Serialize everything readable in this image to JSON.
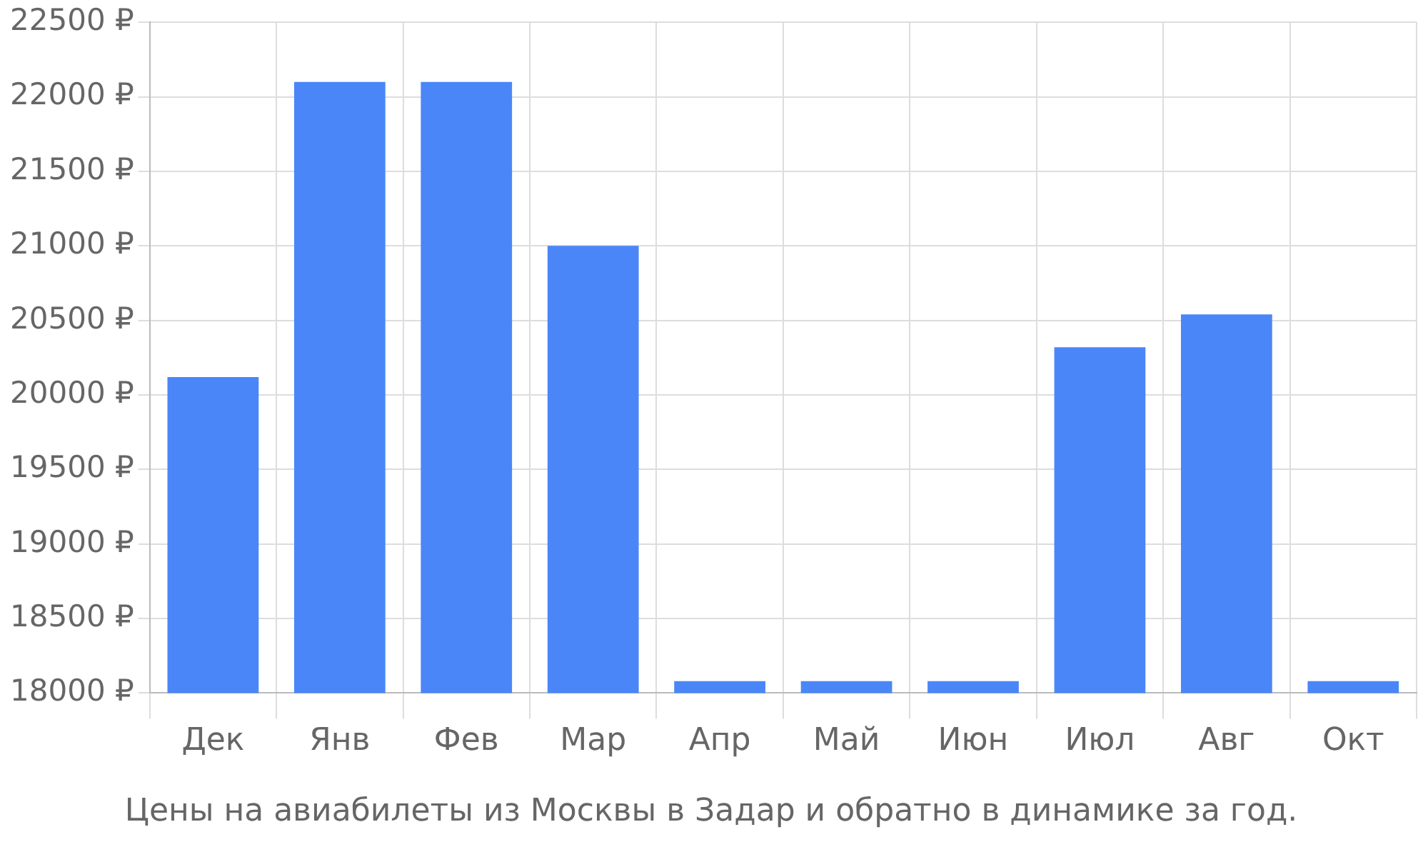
{
  "chart_data": {
    "type": "bar",
    "title": "Цены на авиабилеты из Москвы в Задар и обратно в динамике за год.",
    "categories": [
      "Дек",
      "Янв",
      "Фев",
      "Мар",
      "Апр",
      "Май",
      "Июн",
      "Июл",
      "Авг",
      "Окт"
    ],
    "values": [
      20120,
      22100,
      22100,
      21000,
      18080,
      18080,
      18080,
      20320,
      20540,
      18080
    ],
    "color": "#4a86f7",
    "ylim": [
      18000,
      22500
    ],
    "yticks": [
      {
        "value": 18000,
        "label": "18000 ₽"
      },
      {
        "value": 18500,
        "label": "18500 ₽"
      },
      {
        "value": 19000,
        "label": "19000 ₽"
      },
      {
        "value": 19500,
        "label": "19500 ₽"
      },
      {
        "value": 20000,
        "label": "20000 ₽"
      },
      {
        "value": 20500,
        "label": "20500 ₽"
      },
      {
        "value": 21000,
        "label": "21000 ₽"
      },
      {
        "value": 21500,
        "label": "21500 ₽"
      },
      {
        "value": 22000,
        "label": "22000 ₽"
      },
      {
        "value": 22500,
        "label": "22500 ₽"
      }
    ],
    "grid": true
  }
}
